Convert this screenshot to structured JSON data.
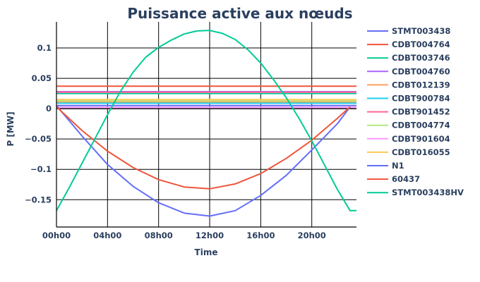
{
  "chart_data": {
    "type": "line",
    "title": "Puissance active aux nœuds",
    "xlabel": "Time",
    "ylabel": "P [MW]",
    "x_range_hours": [
      0,
      23.5
    ],
    "ylim": [
      -0.195,
      0.143
    ],
    "x_ticks": [
      {
        "hour": 0,
        "label": "00h00"
      },
      {
        "hour": 4,
        "label": "04h00"
      },
      {
        "hour": 8,
        "label": "08h00"
      },
      {
        "hour": 12,
        "label": "12h00"
      },
      {
        "hour": 16,
        "label": "16h00"
      },
      {
        "hour": 20,
        "label": "20h00"
      }
    ],
    "y_ticks": [
      {
        "value": 0.1,
        "label": "0.1"
      },
      {
        "value": 0.05,
        "label": "0.05"
      },
      {
        "value": 0,
        "label": "0"
      },
      {
        "value": -0.05,
        "label": "−0.05"
      },
      {
        "value": -0.1,
        "label": "−0.1"
      },
      {
        "value": -0.15,
        "label": "−0.15"
      }
    ],
    "grid": true,
    "legend_position": "right",
    "series": [
      {
        "name": "STMT003438",
        "color": "#636efa",
        "shape": "const",
        "value": 0.005
      },
      {
        "name": "CDBT004764",
        "color": "#ef553b",
        "shape": "const",
        "value": 0.037
      },
      {
        "name": "CDBT003746",
        "color": "#00cc96",
        "shape": "const",
        "value": 0.025
      },
      {
        "name": "CDBT004760",
        "color": "#ab63fa",
        "shape": "const",
        "value": 0.028
      },
      {
        "name": "CDBT012139",
        "color": "#ffa15a",
        "shape": "const",
        "value": 0.011
      },
      {
        "name": "CDBT900784",
        "color": "#19d3f3",
        "shape": "const",
        "value": 0.009
      },
      {
        "name": "CDBT901452",
        "color": "#ff6692",
        "shape": "const",
        "value": 0.027
      },
      {
        "name": "CDBT004774",
        "color": "#b6e880",
        "shape": "const",
        "value": 0.013
      },
      {
        "name": "CDBT901604",
        "color": "#ff97ff",
        "shape": "const",
        "value": 0.002
      },
      {
        "name": "CDBT016055",
        "color": "#fecb52",
        "shape": "const",
        "value": 0.015
      },
      {
        "name": "N1",
        "color": "#636efa",
        "shape": "sine",
        "x": [
          0,
          2,
          4,
          6,
          8,
          10,
          12,
          14,
          16,
          18,
          20,
          22,
          23
        ],
        "y": [
          0.005,
          -0.045,
          -0.092,
          -0.128,
          -0.155,
          -0.172,
          -0.177,
          -0.168,
          -0.143,
          -0.11,
          -0.068,
          -0.025,
          0.003
        ]
      },
      {
        "name": "60437",
        "color": "#ef553b",
        "shape": "sine",
        "x": [
          0,
          2,
          4,
          6,
          8,
          10,
          12,
          14,
          16,
          18,
          20,
          22,
          23
        ],
        "y": [
          0.003,
          -0.036,
          -0.07,
          -0.097,
          -0.117,
          -0.129,
          -0.132,
          -0.124,
          -0.107,
          -0.082,
          -0.052,
          -0.016,
          0.003
        ]
      },
      {
        "name": "STMT003438HV",
        "color": "#00cc96",
        "shape": "sine",
        "x": [
          0,
          1,
          2,
          3,
          4,
          5,
          6,
          7,
          8,
          9,
          10,
          11,
          12,
          13,
          14,
          15,
          16,
          17,
          18,
          19,
          20,
          21,
          22,
          23,
          23.5
        ],
        "y": [
          -0.168,
          -0.13,
          -0.09,
          -0.05,
          -0.01,
          0.028,
          0.06,
          0.085,
          0.101,
          0.113,
          0.123,
          0.128,
          0.129,
          0.124,
          0.114,
          0.097,
          0.075,
          0.048,
          0.018,
          -0.016,
          -0.053,
          -0.093,
          -0.133,
          -0.168,
          -0.168
        ]
      }
    ]
  }
}
